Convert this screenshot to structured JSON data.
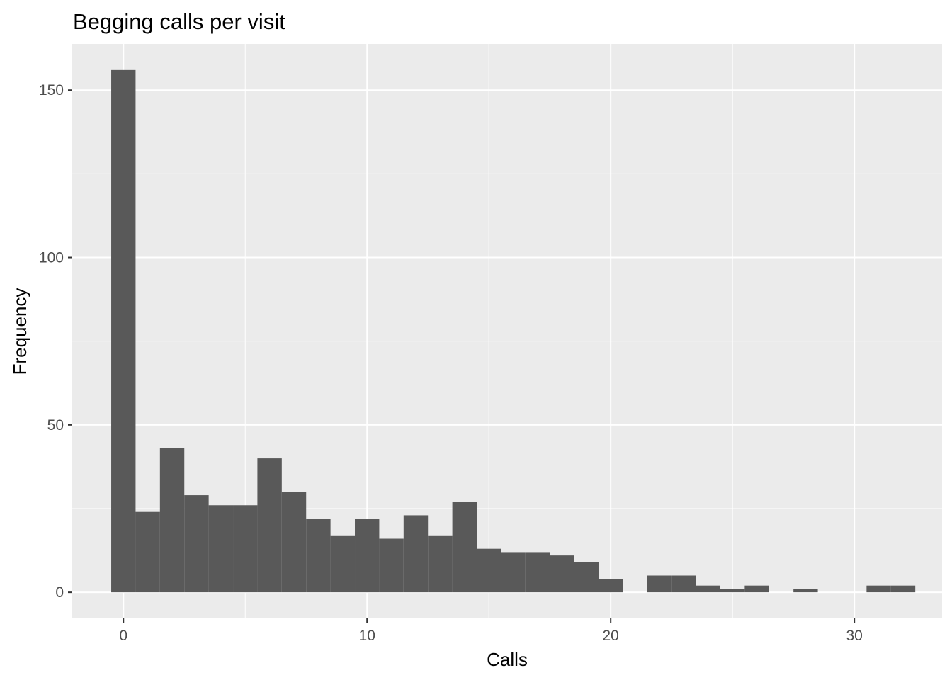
{
  "chart_data": {
    "type": "bar",
    "subtype": "histogram",
    "title": "Begging calls per visit",
    "xlabel": "Calls",
    "ylabel": "Frequency",
    "bin_width": 1,
    "bin_centers": [
      0,
      1,
      2,
      3,
      4,
      5,
      6,
      7,
      8,
      9,
      10,
      11,
      12,
      13,
      14,
      15,
      16,
      17,
      18,
      19,
      20,
      21,
      22,
      23,
      24,
      25,
      26,
      27,
      28,
      29,
      30,
      31,
      32
    ],
    "values": [
      156,
      24,
      43,
      29,
      26,
      26,
      40,
      30,
      22,
      17,
      22,
      16,
      23,
      17,
      27,
      13,
      12,
      12,
      11,
      9,
      4,
      0,
      5,
      5,
      2,
      1,
      2,
      0,
      1,
      0,
      0,
      2,
      2
    ],
    "xlim": [
      -2.1,
      33.6
    ],
    "ylim": [
      -7.8,
      163.8
    ],
    "x_ticks": [
      0,
      10,
      20,
      30
    ],
    "x_tick_labels": [
      "0",
      "10",
      "20",
      "30"
    ],
    "y_ticks": [
      0,
      50,
      100,
      150
    ],
    "y_tick_labels": [
      "0",
      "50",
      "100",
      "150"
    ],
    "grid": true,
    "colors": {
      "panel_background": "#ebebeb",
      "grid_major": "#ffffff",
      "bar_fill": "#595959",
      "tick_text": "#4d4d4d",
      "tick_mark": "#333333"
    }
  }
}
